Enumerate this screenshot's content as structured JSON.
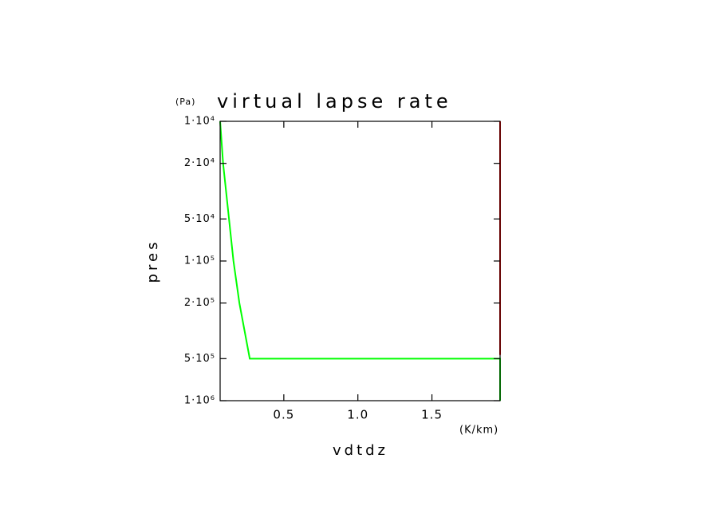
{
  "chart_data": {
    "type": "line",
    "title": "virtual lapse rate",
    "y_unit": "(Pa)",
    "ylabel": "pres",
    "xlabel": "vdtdz",
    "x_unit": "(K/km)",
    "xlim": [
      0.07,
      1.96
    ],
    "xticks": [
      0.5,
      {
        "value": 1,
        "label": "1.0"
      },
      1.5
    ],
    "ylim": [
      1000000,
      10000
    ],
    "ylog": true,
    "yticks": [
      {
        "value": 10000,
        "label": "1·10⁴"
      },
      {
        "value": 20000,
        "label": "2·10⁴"
      },
      {
        "value": 50000,
        "label": "5·10⁴"
      },
      {
        "value": 100000,
        "label": "1·10⁵"
      },
      {
        "value": 200000,
        "label": "2·10⁵"
      },
      {
        "value": 500000,
        "label": "5·10⁵"
      },
      {
        "value": 1000000,
        "label": "1·10⁶"
      }
    ],
    "series": [
      {
        "color": "#00ff00",
        "x": [
          0.07,
          0.09,
          0.13,
          0.16,
          0.2,
          0.27,
          1.96,
          1.96
        ],
        "values": [
          10000,
          20000,
          50000,
          100000,
          200000,
          500000,
          500000,
          1000000
        ]
      },
      {
        "color": "#ff0000",
        "x": [
          1.96,
          1.96
        ],
        "values": [
          10000,
          470000
        ]
      }
    ]
  }
}
